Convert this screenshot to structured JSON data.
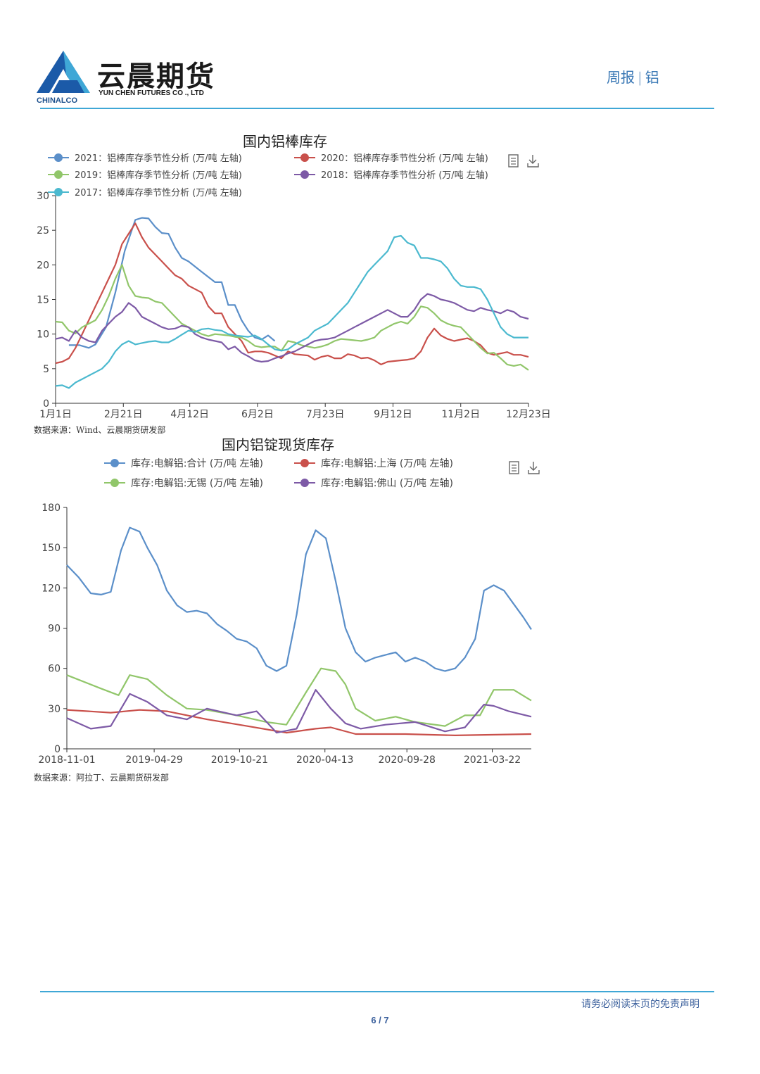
{
  "header": {
    "brand_cn": "云晨期货",
    "brand_en": "YUN CHEN FUTURES CO ., LTD",
    "brand_sub": "CHINALCO",
    "report_type": "周报",
    "report_subject": "铝",
    "logo_color": "#1b5aa8"
  },
  "footer": {
    "disclaimer": "请务必阅读末页的免责声明",
    "page": "6 / 7"
  },
  "sources": {
    "chart1": "数据来源：Wind、云晨期货研发部",
    "chart2": "数据来源：阿拉丁、云晨期货研发部"
  },
  "icons": [
    "data-view-icon",
    "download-icon"
  ],
  "chart_data": [
    {
      "type": "line",
      "title": "国内铝棒库存",
      "ylim": [
        0,
        30
      ],
      "yticks": [
        "0",
        "5",
        "10",
        "15",
        "20",
        "25",
        "30"
      ],
      "xlim": [
        0,
        356
      ],
      "xticks": [
        {
          "label": "1月1日",
          "at": 0
        },
        {
          "label": "2月21日",
          "at": 51
        },
        {
          "label": "4月12日",
          "at": 101
        },
        {
          "label": "6月2日",
          "at": 152
        },
        {
          "label": "7月23日",
          "at": 203
        },
        {
          "label": "9月12日",
          "at": 254
        },
        {
          "label": "11月2日",
          "at": 305
        },
        {
          "label": "12月23日",
          "at": 356
        }
      ],
      "grid": false,
      "legend_position": "top",
      "series": [
        {
          "name": "2021：铝棒库存季节性分析 (万/吨 左轴)",
          "color": "#5b8fc9",
          "x": [
            10,
            18,
            25,
            30,
            38,
            45,
            52,
            60,
            65,
            70,
            75,
            80,
            85,
            90,
            95,
            100,
            110,
            120,
            125,
            130,
            135,
            140,
            145,
            150,
            155,
            160,
            165
          ],
          "y": [
            8.4,
            8.4,
            8.0,
            8.5,
            11,
            16,
            22,
            26.5,
            26.8,
            26.7,
            25.5,
            24.6,
            24.5,
            22.5,
            21,
            20.5,
            19,
            17.5,
            17.5,
            14.2,
            14.2,
            12,
            10.5,
            9.5,
            9.2,
            9.8,
            9.0
          ]
        },
        {
          "name": "2020：铝棒库存季节性分析 (万/吨 左轴)",
          "color": "#c9504b",
          "x": [
            0,
            5,
            10,
            15,
            20,
            25,
            30,
            35,
            40,
            45,
            50,
            55,
            60,
            65,
            70,
            75,
            80,
            85,
            90,
            95,
            100,
            110,
            115,
            120,
            125,
            130,
            140,
            145,
            150,
            155,
            160,
            165,
            170,
            175,
            180,
            185,
            190,
            195,
            200,
            205,
            210,
            215,
            220,
            225,
            230,
            235,
            240,
            245,
            250,
            255,
            260,
            265,
            270,
            275,
            280,
            285,
            290,
            295,
            300,
            305,
            310,
            315,
            320,
            325,
            330,
            335,
            340,
            345,
            350,
            356
          ],
          "y": [
            5.8,
            6.0,
            6.5,
            8.0,
            10,
            12,
            14,
            16,
            18,
            20,
            23,
            24.5,
            26,
            24,
            22.5,
            21.5,
            20.5,
            19.5,
            18.5,
            18,
            17,
            16,
            14,
            13,
            13,
            11,
            9,
            7.3,
            7.5,
            7.5,
            7.3,
            6.9,
            6.5,
            7.5,
            7.1,
            7.0,
            6.9,
            6.3,
            6.7,
            6.9,
            6.5,
            6.5,
            7.1,
            6.9,
            6.5,
            6.6,
            6.2,
            5.6,
            6.0,
            6.1,
            6.2,
            6.3,
            6.5,
            7.5,
            9.5,
            10.8,
            9.8,
            9.3,
            9.0,
            9.2,
            9.4,
            9.0,
            8.4,
            7.3,
            7.0,
            7.2,
            7.4,
            7.0,
            7.0,
            6.7
          ]
        },
        {
          "name": "2019：铝棒库存季节性分析 (万/吨 左轴)",
          "color": "#91c66a",
          "x": [
            0,
            5,
            10,
            15,
            20,
            25,
            30,
            35,
            40,
            45,
            50,
            55,
            60,
            65,
            70,
            75,
            80,
            85,
            90,
            95,
            100,
            105,
            110,
            115,
            120,
            125,
            130,
            135,
            140,
            145,
            150,
            155,
            160,
            165,
            170,
            175,
            180,
            185,
            190,
            195,
            200,
            205,
            210,
            215,
            220,
            225,
            230,
            235,
            240,
            245,
            250,
            255,
            260,
            265,
            270,
            275,
            280,
            285,
            290,
            295,
            300,
            305,
            310,
            315,
            320,
            325,
            330,
            335,
            340,
            345,
            350,
            356
          ],
          "y": [
            11.8,
            11.7,
            10.5,
            10.1,
            11.0,
            11.5,
            12.0,
            13.5,
            15.5,
            18.0,
            20.0,
            17.0,
            15.5,
            15.3,
            15.2,
            14.7,
            14.5,
            13.5,
            12.5,
            11.5,
            11.0,
            10.5,
            10.0,
            9.7,
            10.0,
            9.9,
            9.8,
            9.6,
            9.5,
            9.0,
            8.3,
            8.1,
            8.2,
            8.2,
            7.6,
            9.0,
            8.8,
            8.4,
            8.2,
            8.0,
            8.2,
            8.5,
            9.0,
            9.3,
            9.2,
            9.1,
            9.0,
            9.2,
            9.5,
            10.5,
            11.0,
            11.5,
            11.8,
            11.5,
            12.5,
            14.0,
            13.8,
            13.0,
            12.0,
            11.5,
            11.2,
            11.0,
            10.0,
            9.0,
            8.0,
            7.2,
            7.3,
            6.5,
            5.6,
            5.4,
            5.6,
            4.8
          ]
        },
        {
          "name": "2018：铝棒库存季节性分析 (万/吨 左轴)",
          "color": "#7d5aa6",
          "x": [
            0,
            5,
            10,
            15,
            20,
            25,
            30,
            35,
            40,
            45,
            50,
            55,
            60,
            65,
            70,
            75,
            80,
            85,
            90,
            95,
            100,
            105,
            110,
            115,
            120,
            125,
            130,
            135,
            140,
            145,
            150,
            155,
            160,
            165,
            170,
            175,
            180,
            185,
            190,
            195,
            200,
            205,
            210,
            215,
            220,
            225,
            230,
            235,
            240,
            245,
            250,
            255,
            260,
            265,
            270,
            275,
            280,
            285,
            290,
            295,
            300,
            305,
            310,
            315,
            320,
            325,
            330,
            335,
            340,
            345,
            350,
            356
          ],
          "y": [
            9.3,
            9.5,
            9.0,
            10.5,
            9.5,
            9.0,
            8.8,
            10.5,
            11.5,
            12.5,
            13.2,
            14.5,
            13.8,
            12.5,
            12.0,
            11.5,
            11.0,
            10.7,
            10.8,
            11.2,
            11.0,
            10.0,
            9.5,
            9.2,
            9.0,
            8.8,
            7.8,
            8.2,
            7.3,
            6.8,
            6.2,
            6.0,
            6.1,
            6.5,
            6.8,
            7.2,
            7.5,
            8.0,
            8.5,
            9.0,
            9.2,
            9.3,
            9.5,
            10.0,
            10.5,
            11.0,
            11.5,
            12.0,
            12.5,
            13.0,
            13.5,
            13.0,
            12.5,
            12.5,
            13.5,
            15.0,
            15.8,
            15.5,
            15.0,
            14.8,
            14.5,
            14.0,
            13.5,
            13.3,
            13.8,
            13.5,
            13.3,
            13.0,
            13.5,
            13.2,
            12.5,
            12.2
          ]
        },
        {
          "name": "2017：铝棒库存季节性分析 (万/吨 左轴)",
          "color": "#4bb9cf",
          "x": [
            0,
            5,
            10,
            15,
            20,
            25,
            30,
            35,
            40,
            45,
            50,
            55,
            60,
            65,
            70,
            75,
            80,
            85,
            90,
            95,
            100,
            105,
            110,
            115,
            120,
            125,
            130,
            135,
            140,
            145,
            150,
            155,
            160,
            165,
            170,
            175,
            180,
            185,
            190,
            195,
            200,
            205,
            210,
            215,
            220,
            225,
            230,
            235,
            240,
            245,
            250,
            255,
            260,
            265,
            270,
            275,
            280,
            285,
            290,
            295,
            300,
            305,
            310,
            315,
            320,
            325,
            330,
            335,
            340,
            345,
            350,
            356
          ],
          "y": [
            2.5,
            2.6,
            2.2,
            3.0,
            3.5,
            4.0,
            4.5,
            5.0,
            6.0,
            7.5,
            8.5,
            9.0,
            8.5,
            8.7,
            8.9,
            9.0,
            8.8,
            8.8,
            9.3,
            9.9,
            10.5,
            10.3,
            10.7,
            10.8,
            10.6,
            10.5,
            10.0,
            9.8,
            9.7,
            9.6,
            9.8,
            9.3,
            8.5,
            7.8,
            7.6,
            7.8,
            8.5,
            9.0,
            9.5,
            10.5,
            11.0,
            11.5,
            12.5,
            13.5,
            14.5,
            16.0,
            17.5,
            19.0,
            20.0,
            21.0,
            22.0,
            24.0,
            24.2,
            23.2,
            22.8,
            21.0,
            21.0,
            20.8,
            20.5,
            19.5,
            18.0,
            17.0,
            16.8,
            16.8,
            16.5,
            15.0,
            13.0,
            11.0,
            10.0,
            9.5,
            9.5,
            9.5
          ]
        }
      ]
    },
    {
      "type": "line",
      "title": "国内铝锭现货库存",
      "ylim": [
        0,
        180
      ],
      "yticks": [
        "0",
        "30",
        "60",
        "90",
        "120",
        "150",
        "180"
      ],
      "xlim": [
        "2018-11-01",
        "2021-06-10"
      ],
      "xticks": [
        "2018-11-01",
        "2019-04-29",
        "2019-10-21",
        "2020-04-13",
        "2020-09-28",
        "2021-03-22"
      ],
      "grid": false,
      "legend_position": "top",
      "series": [
        {
          "name": "库存:电解铝:合计 (万/吨 左轴)",
          "color": "#5b8fc9",
          "x": [
            "2018-11-01",
            "2018-11-25",
            "2018-12-20",
            "2019-01-10",
            "2019-01-30",
            "2019-02-20",
            "2019-03-10",
            "2019-03-30",
            "2019-04-15",
            "2019-05-05",
            "2019-05-25",
            "2019-06-15",
            "2019-07-05",
            "2019-07-25",
            "2019-08-15",
            "2019-09-05",
            "2019-09-25",
            "2019-10-15",
            "2019-11-05",
            "2019-11-25",
            "2019-12-15",
            "2020-01-05",
            "2020-01-25",
            "2020-02-15",
            "2020-03-05",
            "2020-03-25",
            "2020-04-15",
            "2020-05-05",
            "2020-05-25",
            "2020-06-15",
            "2020-07-05",
            "2020-07-25",
            "2020-08-15",
            "2020-09-05",
            "2020-09-25",
            "2020-10-15",
            "2020-11-05",
            "2020-11-25",
            "2020-12-15",
            "2021-01-05",
            "2021-01-25",
            "2021-02-15",
            "2021-03-05",
            "2021-03-25",
            "2021-04-15",
            "2021-05-05",
            "2021-05-25",
            "2021-06-10"
          ],
          "y": [
            137,
            128,
            116,
            115,
            117,
            148,
            165,
            162,
            150,
            137,
            118,
            107,
            102,
            103,
            101,
            93,
            88,
            82,
            80,
            75,
            62,
            58,
            62,
            100,
            145,
            163,
            157,
            125,
            90,
            72,
            65,
            68,
            70,
            72,
            65,
            68,
            65,
            60,
            58,
            60,
            68,
            82,
            118,
            122,
            118,
            108,
            98,
            89
          ]
        },
        {
          "name": "库存:电解铝:上海 (万/吨 左轴)",
          "color": "#c9504b",
          "x": [
            "2018-11-01",
            "2019-01-30",
            "2019-03-30",
            "2019-05-25",
            "2019-08-15",
            "2019-11-05",
            "2020-01-25",
            "2020-03-25",
            "2020-04-25",
            "2020-06-15",
            "2020-09-25",
            "2021-01-05",
            "2021-06-10"
          ],
          "y": [
            29,
            27,
            29,
            28,
            22,
            17,
            12,
            15,
            16,
            11,
            11,
            10,
            11
          ]
        },
        {
          "name": "库存:电解铝:无锡 (万/吨 左轴)",
          "color": "#91c66a",
          "x": [
            "2018-11-01",
            "2019-01-10",
            "2019-02-15",
            "2019-03-10",
            "2019-04-15",
            "2019-05-25",
            "2019-07-05",
            "2019-08-15",
            "2019-10-15",
            "2019-12-15",
            "2020-01-25",
            "2020-03-05",
            "2020-04-05",
            "2020-05-05",
            "2020-05-25",
            "2020-06-15",
            "2020-07-25",
            "2020-09-05",
            "2020-10-15",
            "2020-12-15",
            "2021-01-25",
            "2021-02-25",
            "2021-03-25",
            "2021-05-05",
            "2021-06-10"
          ],
          "y": [
            55,
            45,
            40,
            55,
            52,
            40,
            30,
            29,
            25,
            20,
            18,
            42,
            60,
            58,
            48,
            30,
            21,
            24,
            20,
            17,
            25,
            25,
            44,
            44,
            36
          ]
        },
        {
          "name": "库存:电解铝:佛山 (万/吨 左轴)",
          "color": "#7d5aa6",
          "x": [
            "2018-11-01",
            "2018-12-20",
            "2019-01-30",
            "2019-03-10",
            "2019-04-15",
            "2019-05-25",
            "2019-07-05",
            "2019-08-15",
            "2019-10-15",
            "2019-11-25",
            "2020-01-05",
            "2020-02-15",
            "2020-03-25",
            "2020-04-25",
            "2020-05-25",
            "2020-06-25",
            "2020-08-15",
            "2020-10-15",
            "2020-12-15",
            "2021-01-25",
            "2021-03-05",
            "2021-03-25",
            "2021-04-25",
            "2021-06-10"
          ],
          "y": [
            23,
            15,
            17,
            41,
            35,
            25,
            22,
            30,
            25,
            28,
            12,
            15,
            44,
            30,
            19,
            15,
            18,
            20,
            13,
            16,
            33,
            32,
            28,
            24
          ]
        }
      ]
    }
  ]
}
